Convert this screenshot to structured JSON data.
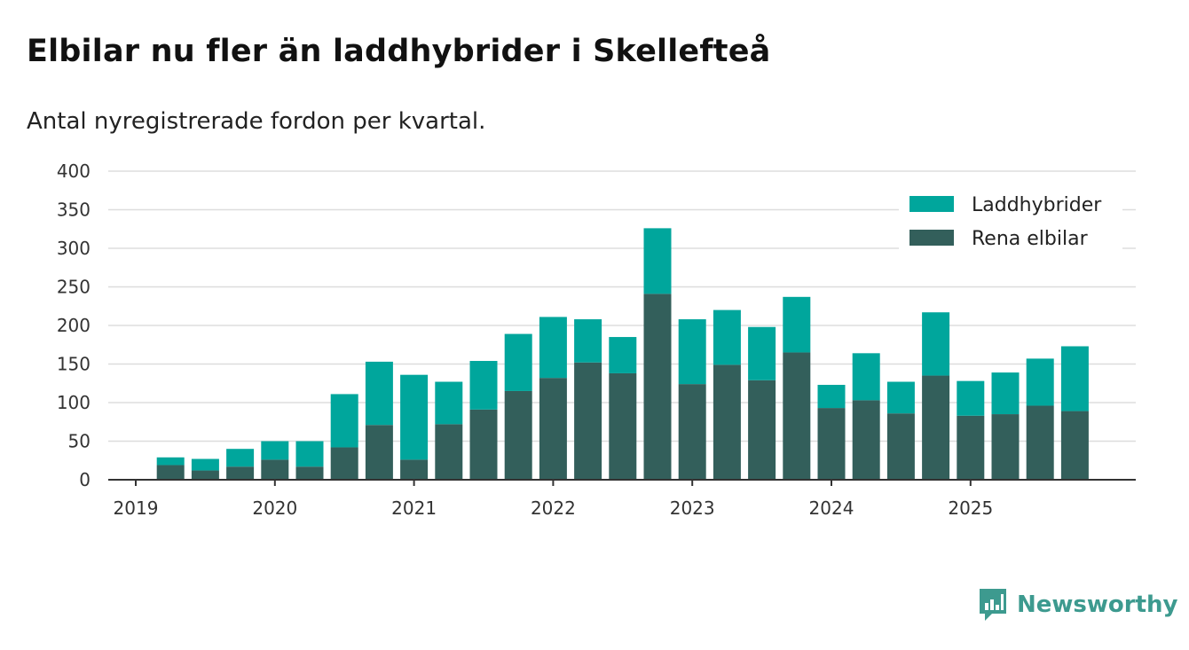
{
  "header": {
    "title": "Elbilar nu fler än laddhybrider i Skellefteå",
    "subtitle": "Antal nyregistrerade fordon per kvartal."
  },
  "colors": {
    "phev": "#00a69c",
    "bev": "#335f5b",
    "grid": "#dddddd",
    "axis": "#333333",
    "brand": "#3d9a8f"
  },
  "brand": {
    "name": "Newsworthy"
  },
  "chart_data": {
    "type": "bar",
    "stacked": true,
    "title": "Elbilar nu fler än laddhybrider i Skellefteå",
    "subtitle": "Antal nyregistrerade fordon per kvartal.",
    "xlabel": "",
    "ylabel": "",
    "ylim": [
      0,
      400
    ],
    "yticks": [
      0,
      50,
      100,
      150,
      200,
      250,
      300,
      350,
      400
    ],
    "grid": true,
    "legend_position": "top-right",
    "x_tick_labels": [
      "2019",
      "2020",
      "2021",
      "2022",
      "2023",
      "2024",
      "2025"
    ],
    "categories": [
      "2019 Q1",
      "2019 Q2",
      "2019 Q3",
      "2019 Q4",
      "2020 Q1",
      "2020 Q2",
      "2020 Q3",
      "2020 Q4",
      "2021 Q1",
      "2021 Q2",
      "2021 Q3",
      "2021 Q4",
      "2022 Q1",
      "2022 Q2",
      "2022 Q3",
      "2022 Q4",
      "2023 Q1",
      "2023 Q2",
      "2023 Q3",
      "2023 Q4",
      "2024 Q1",
      "2024 Q2",
      "2024 Q3",
      "2024 Q4",
      "2025 Q1",
      "2025 Q2",
      "2025 Q3",
      "2025 Q4"
    ],
    "series": [
      {
        "name": "Rena elbilar",
        "color": "#335f5b",
        "values": [
          0,
          19,
          12,
          17,
          26,
          17,
          42,
          71,
          26,
          72,
          91,
          115,
          132,
          152,
          138,
          241,
          124,
          149,
          129,
          165,
          93,
          103,
          86,
          135,
          83,
          85,
          96,
          89
        ]
      },
      {
        "name": "Laddhybrider",
        "color": "#00a69c",
        "values": [
          0,
          10,
          15,
          23,
          24,
          33,
          69,
          82,
          110,
          55,
          63,
          74,
          79,
          56,
          47,
          85,
          84,
          71,
          69,
          72,
          30,
          61,
          41,
          82,
          45,
          54,
          61,
          84
        ]
      }
    ],
    "legend": [
      "Laddhybrider",
      "Rena elbilar"
    ]
  }
}
